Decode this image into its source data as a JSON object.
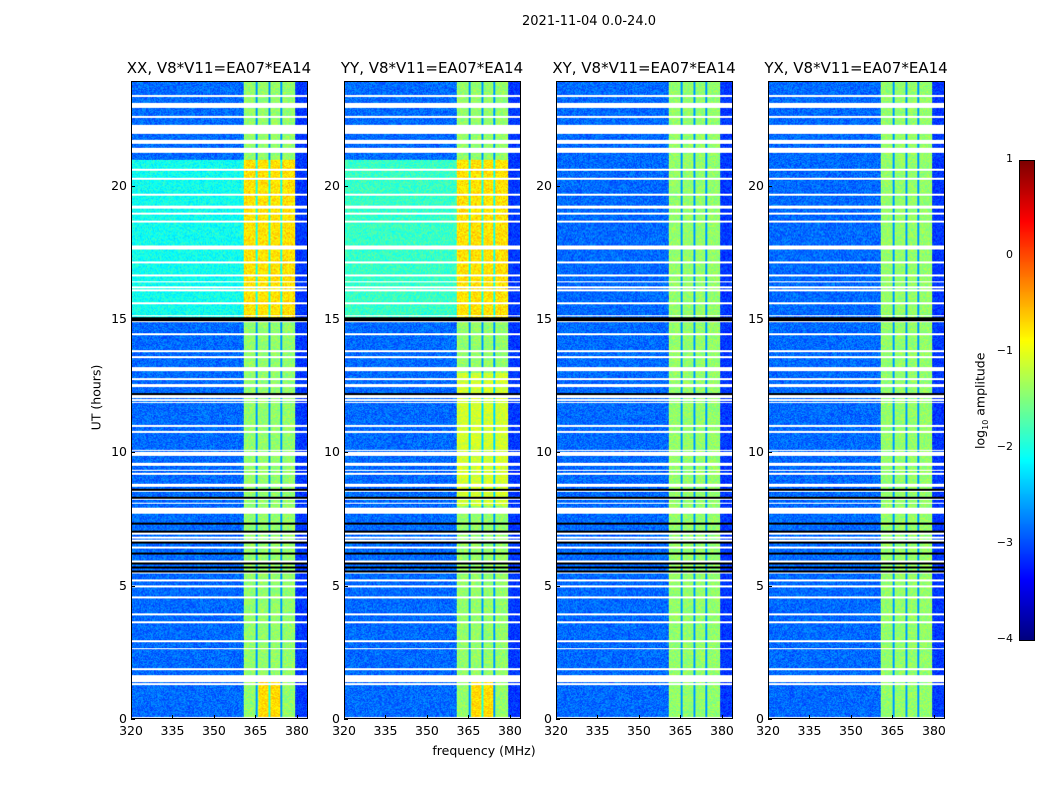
{
  "chart_data": {
    "type": "heatmap",
    "title": "2021-11-04 0.0-24.0",
    "panels": [
      {
        "title": "XX, V8*V11=EA07*EA14"
      },
      {
        "title": "YY, V8*V11=EA07*EA14"
      },
      {
        "title": "XY, V8*V11=EA07*EA14"
      },
      {
        "title": "YX, V8*V11=EA07*EA14"
      }
    ],
    "xlabel": "frequency (MHz)",
    "ylabel": "UT (hours)",
    "xlim": [
      320,
      384
    ],
    "ylim": [
      0,
      24
    ],
    "xticks": [
      "320",
      "335",
      "350",
      "365",
      "380"
    ],
    "xtick_values": [
      320,
      335,
      350,
      365,
      380
    ],
    "yticks": [
      "0",
      "5",
      "10",
      "15",
      "20"
    ],
    "ytick_values": [
      0,
      5,
      10,
      15,
      20
    ],
    "colorbar": {
      "label": "log₁₀ amplitude",
      "label_main": "log",
      "label_sub": "10",
      "label_rest": " amplitude",
      "range": [
        -4,
        1
      ],
      "ticks": [
        "−4",
        "−3",
        "−2",
        "−1",
        "0",
        "1"
      ],
      "tick_values": [
        -4,
        -3,
        -2,
        -1,
        0,
        1
      ],
      "colormap": "jet"
    },
    "strong_band_mhz": [
      360.5,
      379.5
    ],
    "flagged_rows_hours_approx": [
      1.5,
      5.5,
      5.7,
      15.0,
      22.1,
      23.0
    ]
  }
}
